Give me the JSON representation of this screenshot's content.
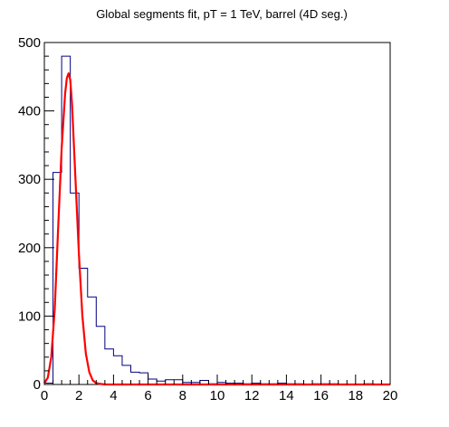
{
  "chart_data": {
    "type": "histogram",
    "title": "Global segments fit, pT = 1 TeV, barrel (4D seg.)",
    "xlabel": "",
    "ylabel": "",
    "xlim": [
      0,
      20
    ],
    "ylim": [
      0,
      500
    ],
    "x_ticks": [
      0,
      2,
      4,
      6,
      8,
      10,
      12,
      14,
      16,
      18,
      20
    ],
    "y_ticks": [
      0,
      100,
      200,
      300,
      400,
      500
    ],
    "grid": false,
    "legend": "none",
    "series": [
      {
        "kind": "histogram",
        "color": "#000080",
        "bin_width": 0.5,
        "bin_edges_start": 0,
        "counts": [
          2,
          310,
          480,
          280,
          170,
          128,
          85,
          52,
          42,
          28,
          18,
          17,
          8,
          5,
          7,
          7,
          3,
          3,
          6,
          1,
          3,
          2,
          2,
          1,
          2,
          1,
          1,
          2,
          1,
          1,
          0,
          1,
          1,
          1,
          0,
          0,
          0,
          1,
          0,
          0
        ]
      },
      {
        "kind": "fit",
        "color": "#ff0000",
        "x": [
          0.0,
          0.2,
          0.4,
          0.6,
          0.8,
          1.0,
          1.2,
          1.3,
          1.4,
          1.5,
          1.6,
          1.8,
          2.0,
          2.2,
          2.4,
          2.6,
          2.8,
          3.0,
          3.2,
          3.5,
          4.0,
          6.0,
          10.0,
          15.0,
          20.0
        ],
        "y": [
          2,
          10,
          40,
          110,
          230,
          345,
          425,
          448,
          455,
          445,
          410,
          300,
          190,
          100,
          45,
          18,
          6,
          2,
          1,
          0,
          0,
          0,
          0,
          0,
          0
        ]
      }
    ]
  }
}
